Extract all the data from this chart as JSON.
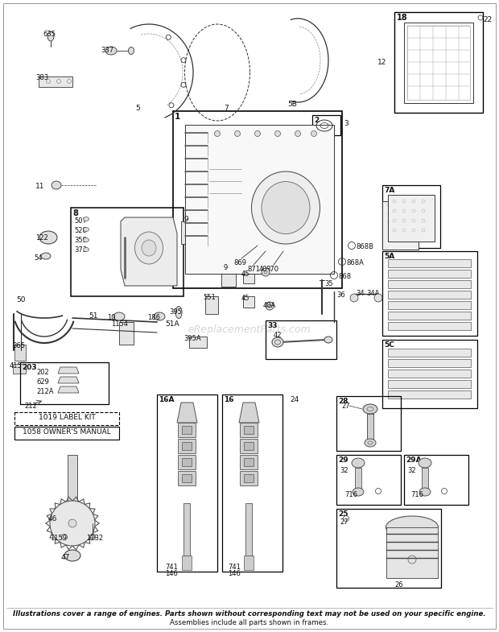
{
  "bg_color": "#ffffff",
  "footer_line1": "Illustrations cover a range of engines. Parts shown without corresponding text may not be used on your specific engine.",
  "footer_line2": "Assemblies include all parts shown in frames.",
  "watermark": "eReplacementParts.com",
  "label_kit": "1019 LABEL KIT",
  "owners_manual": "1058 OWNER'S MANUAL",
  "fig_width": 6.2,
  "fig_height": 7.85,
  "dpi": 100
}
